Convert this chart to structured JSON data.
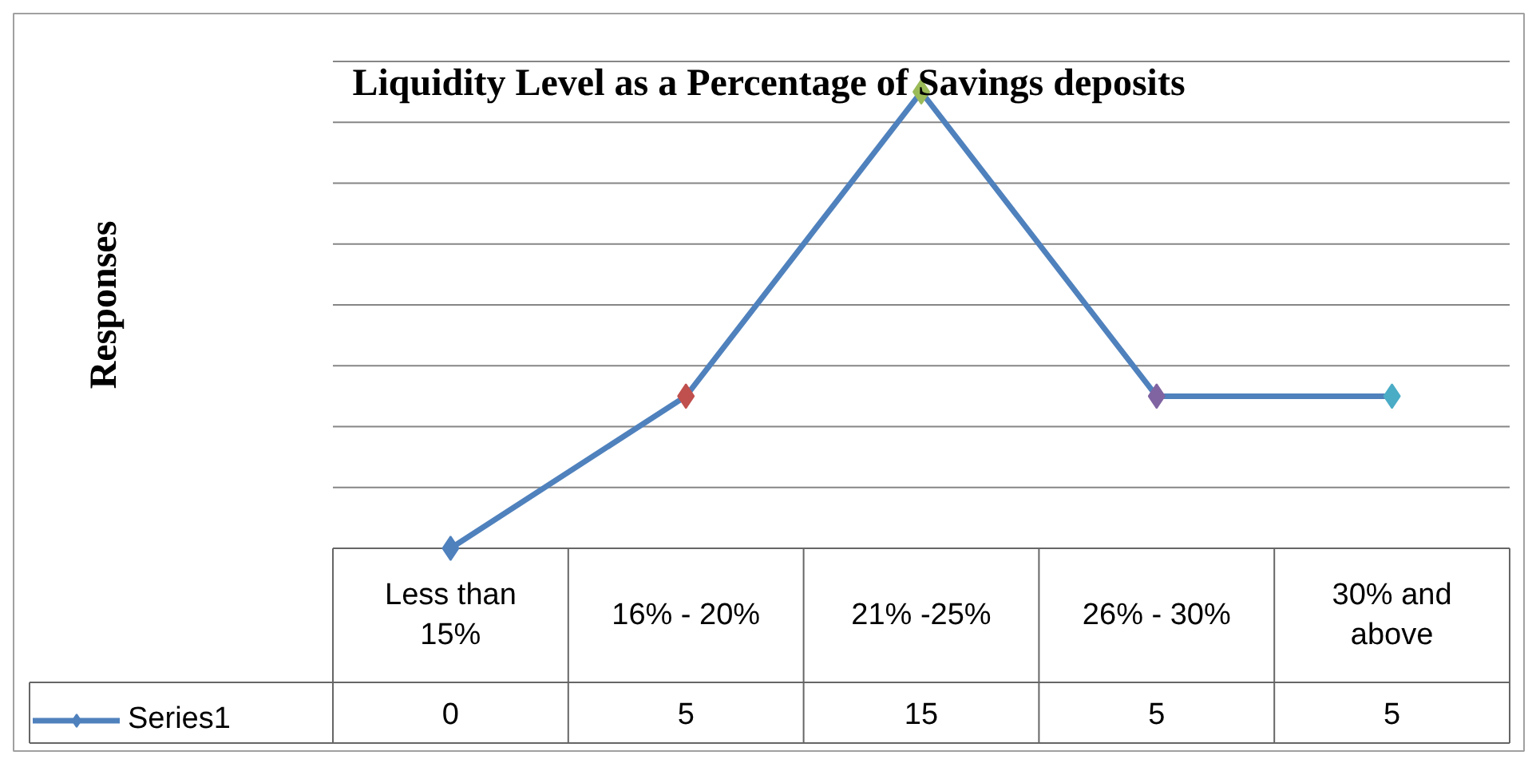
{
  "chart_data": {
    "type": "line",
    "title": "Liquidity Level as a Percentage of Savings deposits",
    "annotations": [
      "Responses"
    ],
    "categories": [
      "Less than 15%",
      "16% - 20%",
      "21% -25%",
      "26% - 30%",
      "30% and above"
    ],
    "series": [
      {
        "name": "Series1",
        "color": "#4f81bd",
        "colors": [
          "#4f81bd",
          "#c0504d",
          "#9bbb59",
          "#8064a2",
          "#4bacc6"
        ],
        "values": [
          0,
          5,
          15,
          5,
          5
        ]
      }
    ],
    "grid": "y",
    "tick_labels": "x",
    "marker": "diamond",
    "data_labels": true,
    "legend": "bottom left"
  }
}
